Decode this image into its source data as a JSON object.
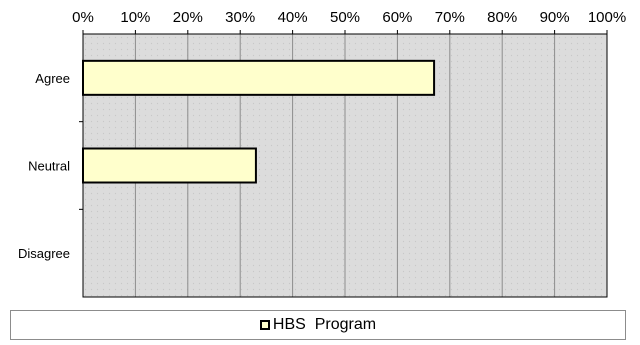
{
  "chart_data": {
    "type": "bar",
    "orientation": "horizontal",
    "categories": [
      "Agree",
      "Neutral",
      "Disagree"
    ],
    "series": [
      {
        "name": "HBS  Program",
        "values": [
          67,
          33,
          0
        ]
      }
    ],
    "x_ticks": [
      "0%",
      "10%",
      "20%",
      "30%",
      "40%",
      "50%",
      "60%",
      "70%",
      "80%",
      "90%",
      "100%"
    ],
    "xlim": [
      0,
      100
    ],
    "x_unit": "%",
    "x_axis_position": "top",
    "grid": true,
    "legend_position": "bottom",
    "colors": {
      "bar_fill": "#ffffcc",
      "bar_stroke": "#000000",
      "plot_background": "#dcdcdc",
      "gridline": "#8c8c8c"
    }
  }
}
